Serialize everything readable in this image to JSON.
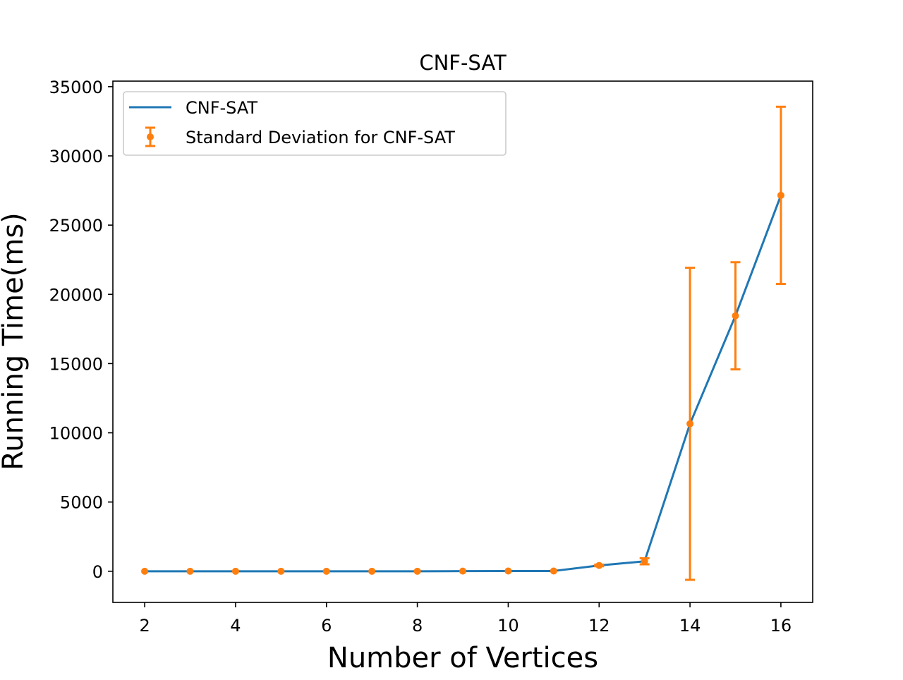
{
  "chart_data": {
    "type": "line",
    "title": "CNF-SAT",
    "xlabel": "Number of Vertices",
    "ylabel": "Running Time(ms)",
    "xlim": [
      1.3,
      16.7
    ],
    "ylim": [
      -2250,
      35400
    ],
    "x_ticks": [
      2,
      4,
      6,
      8,
      10,
      12,
      14,
      16
    ],
    "y_ticks": [
      0,
      5000,
      10000,
      15000,
      20000,
      25000,
      30000,
      35000
    ],
    "x_tick_labels": [
      "2",
      "4",
      "6",
      "8",
      "10",
      "12",
      "14",
      "16"
    ],
    "y_tick_labels": [
      "0",
      "5000",
      "10000",
      "15000",
      "20000",
      "25000",
      "30000",
      "35000"
    ],
    "grid": false,
    "legend_position": "top-left",
    "series": [
      {
        "name": "CNF-SAT",
        "kind": "line",
        "color": "#1f77b4",
        "x": [
          2,
          3,
          4,
          5,
          6,
          7,
          8,
          9,
          10,
          11,
          12,
          13,
          14,
          15,
          16
        ],
        "y": [
          0,
          0,
          0,
          0,
          0,
          0,
          0,
          10,
          20,
          20,
          420,
          720,
          10650,
          18450,
          27150
        ]
      },
      {
        "name": "Standard Deviation for CNF-SAT",
        "kind": "errorbar",
        "color": "#ff7f0e",
        "x": [
          2,
          3,
          4,
          5,
          6,
          7,
          8,
          9,
          10,
          11,
          12,
          13,
          14,
          15,
          16
        ],
        "y": [
          0,
          0,
          0,
          0,
          0,
          0,
          0,
          10,
          20,
          20,
          420,
          720,
          10650,
          18450,
          27150
        ],
        "err": [
          0,
          0,
          0,
          0,
          0,
          0,
          0,
          0,
          0,
          0,
          60,
          220,
          11270,
          3870,
          6400
        ]
      }
    ]
  }
}
